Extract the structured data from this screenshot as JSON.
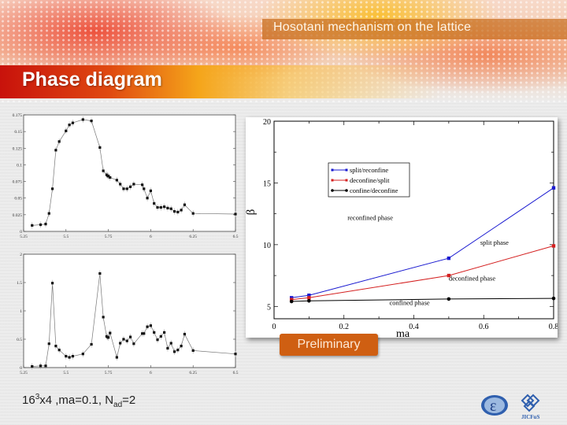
{
  "header": {
    "subtitle": "Hosotani mechanism on the lattice",
    "title": "Phase diagram"
  },
  "badge": {
    "label": "Preliminary",
    "color": "#cf5f12"
  },
  "footnote": {
    "base": "16",
    "sup": "3",
    "mid": "x4 ,ma=0.1, N",
    "sub": "ad",
    "end": "=2"
  },
  "logos": [
    {
      "name": "circle-e-logo"
    },
    {
      "name": "jicfus-logo",
      "label": "JICFuS"
    }
  ],
  "chart_data": [
    {
      "id": "top-left",
      "type": "line",
      "title": "",
      "xlabel": "",
      "ylabel": "",
      "xlim": [
        5.25,
        6.5
      ],
      "ylim": [
        0,
        0.175
      ],
      "xticks": [
        "5.25",
        "5.5",
        "5.75",
        "6",
        "6.25",
        "6.5"
      ],
      "yticks": [
        "0",
        "0.025",
        "0.05",
        "0.075",
        "0.1",
        "0.125",
        "0.15",
        "0.175"
      ],
      "grid": false,
      "x": [
        5.3,
        5.35,
        5.38,
        5.4,
        5.42,
        5.44,
        5.46,
        5.5,
        5.52,
        5.54,
        5.6,
        5.65,
        5.7,
        5.72,
        5.74,
        5.745,
        5.75,
        5.76,
        5.8,
        5.82,
        5.84,
        5.86,
        5.88,
        5.9,
        5.95,
        5.96,
        5.98,
        6.0,
        6.02,
        6.04,
        6.06,
        6.08,
        6.1,
        6.12,
        6.14,
        6.16,
        6.18,
        6.2,
        6.25,
        6.5
      ],
      "values": [
        0.009,
        0.01,
        0.011,
        0.027,
        0.064,
        0.122,
        0.135,
        0.151,
        0.16,
        0.163,
        0.168,
        0.166,
        0.126,
        0.091,
        0.085,
        0.084,
        0.083,
        0.081,
        0.077,
        0.071,
        0.064,
        0.064,
        0.067,
        0.071,
        0.07,
        0.064,
        0.05,
        0.061,
        0.042,
        0.036,
        0.036,
        0.037,
        0.035,
        0.034,
        0.03,
        0.029,
        0.032,
        0.04,
        0.027,
        0.026
      ]
    },
    {
      "id": "bottom-left",
      "type": "line",
      "title": "",
      "xlabel": "",
      "ylabel": "",
      "xlim": [
        5.25,
        6.5
      ],
      "ylim": [
        0,
        2
      ],
      "xticks": [
        "5.25",
        "5.5",
        "5.75",
        "6",
        "6.25",
        "6.5"
      ],
      "yticks": [
        "0",
        "0.5",
        "1",
        "1.5",
        "2"
      ],
      "grid": false,
      "x": [
        5.3,
        5.35,
        5.38,
        5.4,
        5.42,
        5.44,
        5.46,
        5.5,
        5.52,
        5.54,
        5.6,
        5.65,
        5.7,
        5.72,
        5.74,
        5.745,
        5.75,
        5.76,
        5.8,
        5.82,
        5.84,
        5.86,
        5.88,
        5.9,
        5.95,
        5.96,
        5.98,
        6.0,
        6.02,
        6.04,
        6.06,
        6.08,
        6.1,
        6.12,
        6.14,
        6.16,
        6.18,
        6.2,
        6.25,
        6.5
      ],
      "values": [
        0.02,
        0.03,
        0.03,
        0.42,
        1.49,
        0.38,
        0.31,
        0.2,
        0.18,
        0.2,
        0.24,
        0.41,
        1.66,
        0.89,
        0.55,
        0.54,
        0.53,
        0.61,
        0.18,
        0.43,
        0.5,
        0.47,
        0.54,
        0.42,
        0.6,
        0.6,
        0.72,
        0.74,
        0.62,
        0.49,
        0.55,
        0.62,
        0.34,
        0.43,
        0.28,
        0.31,
        0.38,
        0.59,
        0.3,
        0.24
      ]
    },
    {
      "id": "right-phase",
      "type": "line",
      "title": "",
      "xlabel": "ma",
      "ylabel": "β",
      "xlim": [
        0,
        0.8
      ],
      "ylim": [
        4,
        20
      ],
      "xticks": [
        "0",
        "0.2",
        "0.4",
        "0.6",
        "0.8"
      ],
      "yticks": [
        "5",
        "10",
        "15",
        "20"
      ],
      "grid": false,
      "legend_position": "upper-left-inside",
      "x": [
        0.05,
        0.1,
        0.5,
        0.8
      ],
      "series": [
        {
          "name": "split/reconfine",
          "color": "#1a1ad0",
          "values": [
            5.7,
            5.9,
            8.9,
            14.6
          ]
        },
        {
          "name": "deconfine/split",
          "color": "#d42020",
          "values": [
            5.55,
            5.7,
            7.5,
            9.9
          ]
        },
        {
          "name": "confine/deconfine",
          "color": "#000000",
          "values": [
            5.4,
            5.45,
            5.6,
            5.65
          ]
        }
      ],
      "annotations": [
        {
          "text": "reconfined phase",
          "x": 0.21,
          "y": 12.0
        },
        {
          "text": "split phase",
          "x": 0.59,
          "y": 10.0
        },
        {
          "text": "deconfined phase",
          "x": 0.5,
          "y": 7.1
        },
        {
          "text": "confined phase",
          "x": 0.33,
          "y": 5.1
        }
      ]
    }
  ]
}
